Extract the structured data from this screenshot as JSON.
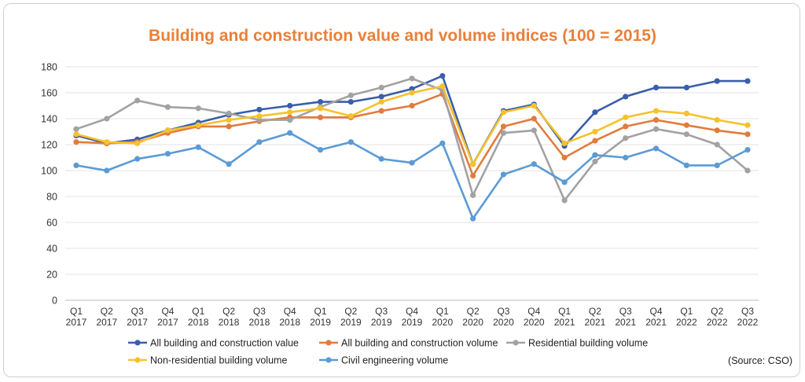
{
  "chart_data": {
    "type": "line",
    "title": "Building and construction value and volume indices (100 = 2015)",
    "xlabel": "",
    "ylabel": "",
    "ylim": [
      0,
      180
    ],
    "yticks": [
      0,
      20,
      40,
      60,
      80,
      100,
      120,
      140,
      160,
      180
    ],
    "categories": [
      "Q1 2017",
      "Q2 2017",
      "Q3 2017",
      "Q4 2017",
      "Q1 2018",
      "Q2 2018",
      "Q3 2018",
      "Q4 2018",
      "Q1 2019",
      "Q2 2019",
      "Q3 2019",
      "Q4 2019",
      "Q1 2020",
      "Q2 2020",
      "Q3 2020",
      "Q4 2020",
      "Q1 2021",
      "Q2 2021",
      "Q3 2021",
      "Q4 2021",
      "Q1 2022",
      "Q2 2022",
      "Q3 2022"
    ],
    "grid": "horizontal",
    "legend_position": "bottom",
    "source": "(Source: CSO)",
    "title_color": "#e8803a",
    "series": [
      {
        "name": "All building and construction value",
        "color": "#3a5eab",
        "values": [
          127,
          121,
          124,
          131,
          137,
          143,
          147,
          150,
          153,
          153,
          157,
          163,
          173,
          105,
          146,
          151,
          119,
          145,
          157,
          164,
          164,
          169,
          169
        ]
      },
      {
        "name": "All building and construction volume",
        "color": "#e07c3e",
        "values": [
          122,
          121,
          122,
          129,
          134,
          134,
          138,
          141,
          141,
          141,
          146,
          150,
          159,
          96,
          134,
          140,
          110,
          123,
          134,
          139,
          135,
          131,
          128
        ]
      },
      {
        "name": "Residential building volume",
        "color": "#a2a2a2",
        "values": [
          132,
          140,
          154,
          149,
          148,
          144,
          139,
          139,
          149,
          158,
          164,
          171,
          162,
          81,
          129,
          131,
          77,
          107,
          125,
          132,
          128,
          120,
          100
        ]
      },
      {
        "name": "Non-residential building volume",
        "color": "#f6c12c",
        "values": [
          128,
          122,
          121,
          131,
          135,
          139,
          142,
          145,
          148,
          142,
          153,
          160,
          165,
          105,
          145,
          150,
          121,
          130,
          141,
          146,
          144,
          139,
          135
        ]
      },
      {
        "name": "Civil engineering volume",
        "color": "#5b9bd5",
        "values": [
          104,
          100,
          109,
          113,
          118,
          105,
          122,
          129,
          116,
          122,
          109,
          106,
          121,
          63,
          97,
          105,
          91,
          112,
          110,
          117,
          104,
          104,
          116
        ]
      }
    ]
  }
}
